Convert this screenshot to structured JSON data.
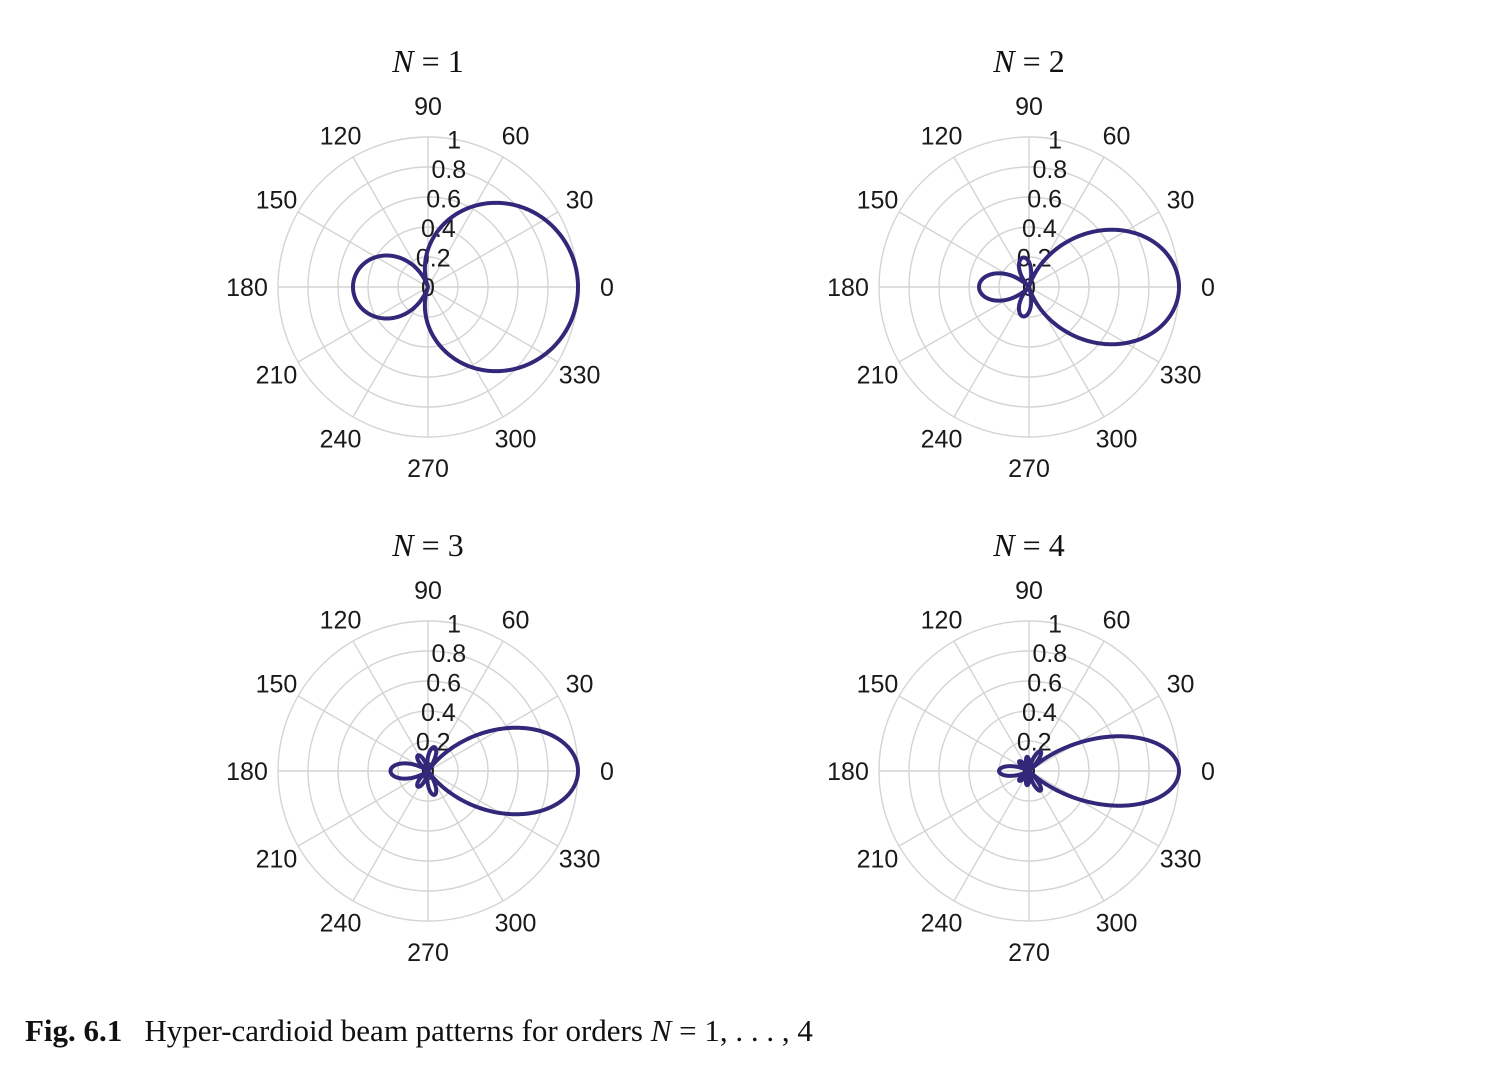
{
  "caption": {
    "label": "Fig. 6.1",
    "text_before": "Hyper-cardioid beam patterns for orders ",
    "math_var": "N",
    "math_rest": " = 1, . . . , 4"
  },
  "colors": {
    "curve": "#32287a",
    "grid": "#d4d4d4"
  },
  "chart_data": [
    {
      "type": "polar-line",
      "title_var": "N",
      "title_rest": " = 1",
      "order": 1,
      "pattern": "hyper-cardioid",
      "angle_ticks": [
        "0",
        "30",
        "60",
        "90",
        "120",
        "150",
        "180",
        "210",
        "240",
        "270",
        "300",
        "330"
      ],
      "radial_ticks": [
        "0",
        "0.2",
        "0.4",
        "0.6",
        "0.8",
        "1"
      ],
      "rlim": [
        0,
        1
      ],
      "angle_unit": "degrees"
    },
    {
      "type": "polar-line",
      "title_var": "N",
      "title_rest": " = 2",
      "order": 2,
      "pattern": "hyper-cardioid",
      "angle_ticks": [
        "0",
        "30",
        "60",
        "90",
        "120",
        "150",
        "180",
        "210",
        "240",
        "270",
        "300",
        "330"
      ],
      "radial_ticks": [
        "0",
        "0.2",
        "0.4",
        "0.6",
        "0.8",
        "1"
      ],
      "rlim": [
        0,
        1
      ],
      "angle_unit": "degrees"
    },
    {
      "type": "polar-line",
      "title_var": "N",
      "title_rest": " = 3",
      "order": 3,
      "pattern": "hyper-cardioid",
      "angle_ticks": [
        "0",
        "30",
        "60",
        "90",
        "120",
        "150",
        "180",
        "210",
        "240",
        "270",
        "300",
        "330"
      ],
      "radial_ticks": [
        "0",
        "0.2",
        "0.4",
        "0.6",
        "0.8",
        "1"
      ],
      "rlim": [
        0,
        1
      ],
      "angle_unit": "degrees"
    },
    {
      "type": "polar-line",
      "title_var": "N",
      "title_rest": " = 4",
      "order": 4,
      "pattern": "hyper-cardioid",
      "angle_ticks": [
        "0",
        "30",
        "60",
        "90",
        "120",
        "150",
        "180",
        "210",
        "240",
        "270",
        "300",
        "330"
      ],
      "radial_ticks": [
        "0",
        "0.2",
        "0.4",
        "0.6",
        "0.8",
        "1"
      ],
      "rlim": [
        0,
        1
      ],
      "angle_unit": "degrees"
    }
  ]
}
